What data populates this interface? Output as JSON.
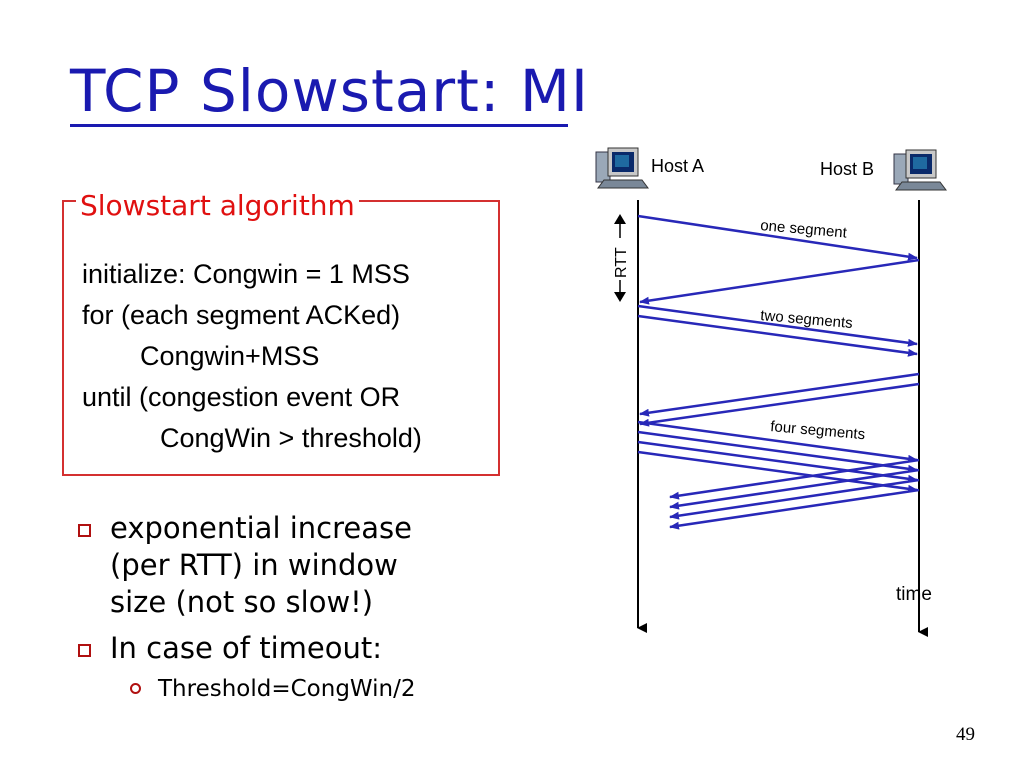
{
  "slide": {
    "title": "TCP Slowstart: MI",
    "page_number": "49"
  },
  "algorithm": {
    "legend": "Slowstart algorithm",
    "lines": [
      "initialize: Congwin = 1 MSS",
      "for (each segment ACKed)",
      "Congwin+MSS",
      "until (congestion event OR",
      "CongWin > threshold)"
    ]
  },
  "bullets": {
    "main": [
      [
        "exponential increase",
        "(per RTT) in window",
        "size (not so slow!)"
      ],
      [
        "In case of timeout:"
      ]
    ],
    "sub": [
      "Threshold=CongWin/2"
    ]
  },
  "diagram": {
    "host_a_label": "Host A",
    "host_b_label": "Host B",
    "rtt_label": "RTT",
    "time_label": "time",
    "segment_labels": [
      "one segment",
      "two segments",
      "four segments"
    ],
    "colors": {
      "arrow": "#2828b8",
      "timeline": "#000000",
      "border": "#d43030",
      "title": "#1a1ab0"
    },
    "icons": [
      "host-a-computer-icon",
      "host-b-computer-icon"
    ]
  }
}
